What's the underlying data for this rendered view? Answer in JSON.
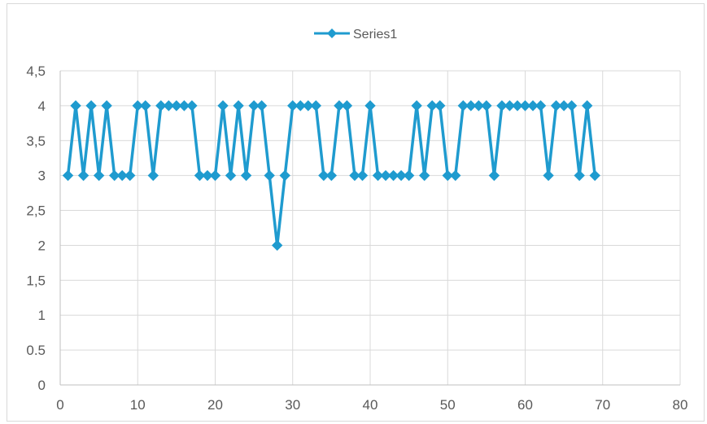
{
  "chart_data": {
    "type": "line",
    "title": "",
    "xlabel": "",
    "ylabel": "",
    "xlim": [
      0,
      80
    ],
    "ylim": [
      0,
      4.5
    ],
    "x_ticks": [
      0,
      10,
      20,
      30,
      40,
      50,
      60,
      70,
      80
    ],
    "x_tick_labels": [
      "0",
      "10",
      "20",
      "30",
      "40",
      "50",
      "60",
      "70",
      "80"
    ],
    "y_ticks": [
      0,
      0.5,
      1,
      1.5,
      2,
      2.5,
      3,
      3.5,
      4,
      4.5
    ],
    "y_tick_labels": [
      "0",
      "0.5",
      "1",
      "1,5",
      "2",
      "2,5",
      "3",
      "3,5",
      "4",
      "4,5"
    ],
    "grid": true,
    "legend_position": "top-center",
    "series": [
      {
        "name": "Series1",
        "color": "#1f9bcf",
        "marker": "diamond",
        "x": [
          1,
          2,
          3,
          4,
          5,
          6,
          7,
          8,
          9,
          10,
          11,
          12,
          13,
          14,
          15,
          16,
          17,
          18,
          19,
          20,
          21,
          22,
          23,
          24,
          25,
          26,
          27,
          28,
          29,
          30,
          31,
          32,
          33,
          34,
          35,
          36,
          37,
          38,
          39,
          40,
          41,
          42,
          43,
          44,
          45,
          46,
          47,
          48,
          49,
          50,
          51,
          52,
          53,
          54,
          55,
          56,
          57,
          58,
          59,
          60,
          61,
          62,
          63,
          64,
          65,
          66,
          67,
          68,
          69
        ],
        "y": [
          3,
          4,
          3,
          4,
          3,
          4,
          3,
          3,
          3,
          4,
          4,
          3,
          4,
          4,
          4,
          4,
          4,
          3,
          3,
          3,
          4,
          3,
          4,
          3,
          4,
          4,
          3,
          2,
          3,
          4,
          4,
          4,
          4,
          3,
          3,
          4,
          4,
          3,
          3,
          4,
          3,
          3,
          3,
          3,
          3,
          4,
          3,
          4,
          4,
          3,
          3,
          4,
          4,
          4,
          4,
          3,
          4,
          4,
          4,
          4,
          4,
          4,
          3,
          4,
          4,
          4,
          3,
          4,
          3
        ]
      }
    ]
  }
}
